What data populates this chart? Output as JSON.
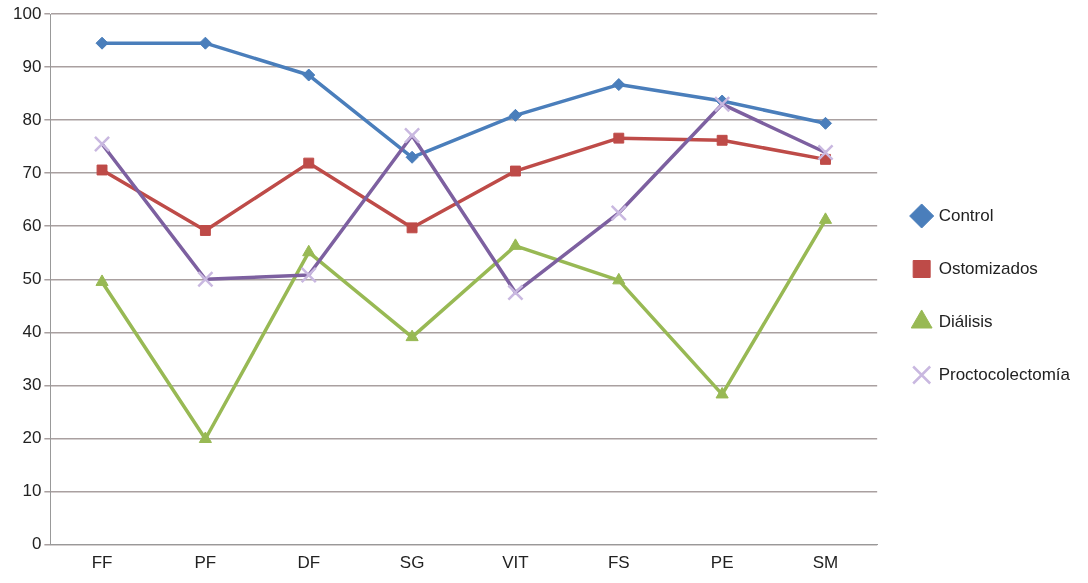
{
  "chart_data": {
    "type": "line",
    "categories": [
      "FF",
      "PF",
      "DF",
      "SG",
      "VIT",
      "FS",
      "PE",
      "SM"
    ],
    "series": [
      {
        "name": "Control",
        "color": "#4a7ebb",
        "marker": "diamond",
        "values": [
          94.5,
          94.5,
          88.5,
          73,
          80.9,
          86.7,
          83.6,
          79.4
        ]
      },
      {
        "name": "Ostomizados",
        "color": "#be4b48",
        "marker": "square",
        "values": [
          70.6,
          59.2,
          71.9,
          59.7,
          70.4,
          76.6,
          76.2,
          72.6
        ]
      },
      {
        "name": "Diálisis",
        "color": "#98b954",
        "marker": "triangle",
        "values": [
          49.5,
          19.9,
          55.1,
          39.1,
          56.3,
          49.8,
          28.3,
          61.2
        ]
      },
      {
        "name": "Proctocolectomía",
        "color": "#7d60a0",
        "marker": "cross",
        "values": [
          75.5,
          50,
          50.8,
          77.1,
          47.5,
          62.5,
          83,
          73.9
        ]
      }
    ],
    "ylim": [
      0,
      100
    ],
    "yticks": [
      0,
      10,
      20,
      30,
      40,
      50,
      60,
      70,
      80,
      90,
      100
    ],
    "grid": "y",
    "legend": "right"
  }
}
